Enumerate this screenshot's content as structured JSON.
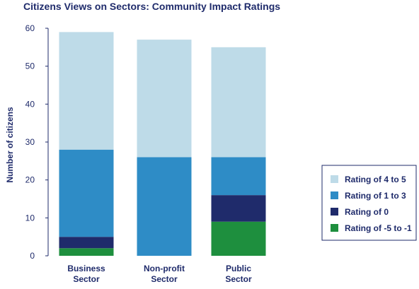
{
  "chart_data": {
    "type": "bar",
    "stacked": true,
    "title": "Citizens Views on Sectors: Community Impact Ratings",
    "xlabel": "",
    "ylabel": "Number of citizens",
    "ylim": [
      0,
      60
    ],
    "yticks": [
      0,
      10,
      20,
      30,
      40,
      50,
      60
    ],
    "grid": false,
    "legend_position": "right",
    "categories": [
      [
        "Business",
        "Sector"
      ],
      [
        "Non-profit",
        "Sector"
      ],
      [
        "Public",
        "Sector"
      ]
    ],
    "series": [
      {
        "name": "Rating of -5 to -1",
        "color": "#1e8f3e",
        "values": [
          2,
          0,
          9
        ]
      },
      {
        "name": "Rating of 0",
        "color": "#1f2b6b",
        "values": [
          3,
          0,
          7
        ]
      },
      {
        "name": "Rating of 1 to 3",
        "color": "#2e8cc6",
        "values": [
          23,
          26,
          10
        ]
      },
      {
        "name": "Rating of 4 to 5",
        "color": "#bedbe8",
        "values": [
          31,
          31,
          29
        ]
      }
    ],
    "legend_order": [
      "Rating of 4 to 5",
      "Rating of 1 to 3",
      "Rating of 0",
      "Rating of -5 to -1"
    ]
  },
  "colors": {
    "text": "#1f2b6b",
    "axis": "#1f2b6b"
  }
}
